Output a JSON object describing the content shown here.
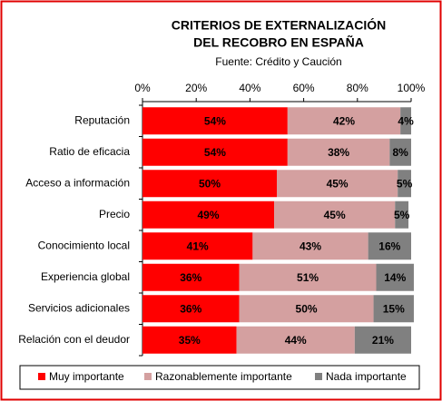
{
  "chart_data": {
    "type": "stacked-bar-horizontal",
    "title": [
      "CRITERIOS DE EXTERNALIZACIÓN",
      "DEL RECOBRO EN ESPAÑA"
    ],
    "subtitle": "Fuente: Crédito y Caución",
    "categories": [
      "Reputación",
      "Ratio de eficacia",
      "Acceso a información",
      "Precio",
      "Conocimiento local",
      "Experiencia global",
      "Servicios adicionales",
      "Relación con el deudor"
    ],
    "series": [
      {
        "name": "Muy importante",
        "color": "#ff0000",
        "values": [
          54,
          54,
          50,
          49,
          41,
          36,
          36,
          35
        ],
        "value_labels": [
          "54%",
          "54%",
          "50%",
          "49%",
          "41%",
          "36%",
          "36%",
          "35%"
        ]
      },
      {
        "name": "Razonablemente importante",
        "color": "#d4a0a0",
        "values": [
          42,
          38,
          45,
          45,
          43,
          51,
          50,
          44
        ],
        "value_labels": [
          "42%",
          "38%",
          "45%",
          "45%",
          "43%",
          "51%",
          "50%",
          "44%"
        ]
      },
      {
        "name": "Nada importante",
        "color": "#808080",
        "values": [
          4,
          8,
          5,
          5,
          16,
          14,
          15,
          21
        ],
        "value_labels": [
          "4%",
          "8%",
          "5%",
          "5%",
          "16%",
          "14%",
          "15%",
          "21%"
        ]
      }
    ],
    "xlim": [
      0,
      100
    ],
    "xticks": [
      {
        "value": 0,
        "label": "0%"
      },
      {
        "value": 20,
        "label": "20%"
      },
      {
        "value": 40,
        "label": "40%"
      },
      {
        "value": 60,
        "label": "60%"
      },
      {
        "value": 80,
        "label": "80%"
      },
      {
        "value": 100,
        "label": "100%"
      }
    ],
    "legend": "bottom"
  }
}
